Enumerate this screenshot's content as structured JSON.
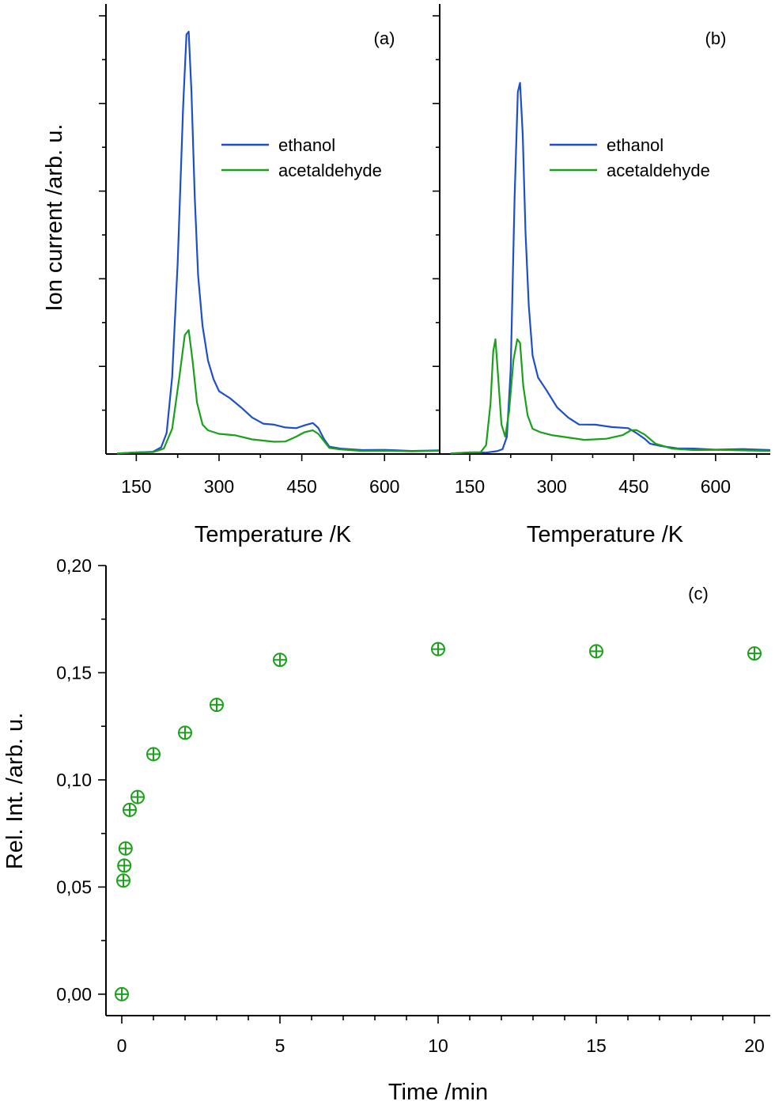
{
  "chart_data": [
    {
      "panel": "a",
      "type": "line",
      "label": "(a)",
      "xlabel": "Temperature /K",
      "ylabel": "Ion current /arb. u.",
      "xlim": [
        95,
        700
      ],
      "ylim": [
        0,
        1.0
      ],
      "xticks": [
        150,
        300,
        450,
        600
      ],
      "yticks_labeled": false,
      "legend": "center-right",
      "series": [
        {
          "name": "ethanol",
          "color": "#1f4fc8",
          "x": [
            115,
            150,
            180,
            195,
            205,
            215,
            225,
            235,
            241,
            245,
            250,
            256,
            262,
            270,
            280,
            290,
            300,
            320,
            340,
            360,
            380,
            400,
            420,
            440,
            455,
            470,
            480,
            490,
            500,
            520,
            560,
            600,
            650,
            700
          ],
          "y": [
            0.002,
            0.003,
            0.006,
            0.015,
            0.05,
            0.18,
            0.45,
            0.82,
            0.985,
            0.99,
            0.85,
            0.6,
            0.42,
            0.3,
            0.22,
            0.175,
            0.148,
            0.13,
            0.11,
            0.085,
            0.072,
            0.068,
            0.063,
            0.06,
            0.068,
            0.072,
            0.062,
            0.035,
            0.018,
            0.012,
            0.01,
            0.009,
            0.008,
            0.008
          ]
        },
        {
          "name": "acetaldehyde",
          "color": "#1aa01a",
          "x": [
            115,
            150,
            180,
            200,
            215,
            228,
            238,
            245,
            252,
            260,
            270,
            280,
            300,
            330,
            360,
            400,
            420,
            440,
            455,
            470,
            480,
            490,
            500,
            520,
            560,
            600,
            650,
            700
          ],
          "y": [
            0.002,
            0.003,
            0.005,
            0.012,
            0.06,
            0.18,
            0.28,
            0.29,
            0.22,
            0.12,
            0.07,
            0.055,
            0.048,
            0.043,
            0.035,
            0.028,
            0.03,
            0.04,
            0.052,
            0.055,
            0.048,
            0.03,
            0.015,
            0.01,
            0.008,
            0.007,
            0.007,
            0.007
          ]
        }
      ]
    },
    {
      "panel": "b",
      "type": "line",
      "label": "(b)",
      "xlabel": "Temperature /K",
      "ylabel": "",
      "xlim": [
        95,
        700
      ],
      "ylim": [
        0,
        1.0
      ],
      "xticks": [
        150,
        300,
        450,
        600
      ],
      "yticks_labeled": false,
      "legend": "center-right",
      "series": [
        {
          "name": "ethanol",
          "color": "#1f4fc8",
          "x": [
            115,
            150,
            180,
            200,
            210,
            218,
            225,
            232,
            238,
            242,
            247,
            252,
            258,
            265,
            275,
            290,
            310,
            330,
            350,
            380,
            410,
            440,
            455,
            470,
            480,
            500,
            530,
            560,
            600,
            650,
            700
          ],
          "y": [
            0.002,
            0.003,
            0.004,
            0.006,
            0.012,
            0.04,
            0.2,
            0.6,
            0.85,
            0.87,
            0.75,
            0.52,
            0.35,
            0.23,
            0.18,
            0.15,
            0.11,
            0.085,
            0.07,
            0.068,
            0.064,
            0.06,
            0.05,
            0.035,
            0.025,
            0.018,
            0.014,
            0.012,
            0.011,
            0.011,
            0.01
          ]
        },
        {
          "name": "acetaldehyde",
          "color": "#1aa01a",
          "x": [
            115,
            150,
            170,
            180,
            188,
            193,
            197,
            202,
            208,
            215,
            222,
            230,
            237,
            242,
            248,
            256,
            265,
            280,
            300,
            330,
            360,
            400,
            430,
            445,
            455,
            470,
            490,
            520,
            560,
            600,
            700
          ],
          "y": [
            0.002,
            0.003,
            0.005,
            0.02,
            0.12,
            0.24,
            0.27,
            0.18,
            0.07,
            0.04,
            0.1,
            0.22,
            0.27,
            0.26,
            0.16,
            0.09,
            0.06,
            0.05,
            0.045,
            0.038,
            0.034,
            0.035,
            0.045,
            0.055,
            0.057,
            0.045,
            0.025,
            0.012,
            0.01,
            0.009,
            0.008
          ]
        }
      ]
    },
    {
      "panel": "c",
      "type": "scatter",
      "label": "(c)",
      "xlabel": "Time /min",
      "ylabel": "Rel. Int. /arb. u.",
      "xlim": [
        -0.5,
        20.5
      ],
      "ylim": [
        -0.01,
        0.2
      ],
      "xticks": [
        0,
        5,
        10,
        15,
        20
      ],
      "xtick_labels": [
        "0",
        "5",
        "10",
        "15",
        "20"
      ],
      "yticks": [
        0.0,
        0.05,
        0.1,
        0.15,
        0.2
      ],
      "ytick_labels": [
        "0,00",
        "0,05",
        "0,10",
        "0,15",
        "0,20"
      ],
      "marker": "circle-plus",
      "color": "#1aa01a",
      "x": [
        0,
        0.05,
        0.08,
        0.12,
        0.25,
        0.5,
        1,
        2,
        3,
        5,
        10,
        15,
        20
      ],
      "y": [
        0.0,
        0.053,
        0.06,
        0.068,
        0.086,
        0.092,
        0.112,
        0.122,
        0.135,
        0.156,
        0.161,
        0.16,
        0.159
      ]
    }
  ]
}
